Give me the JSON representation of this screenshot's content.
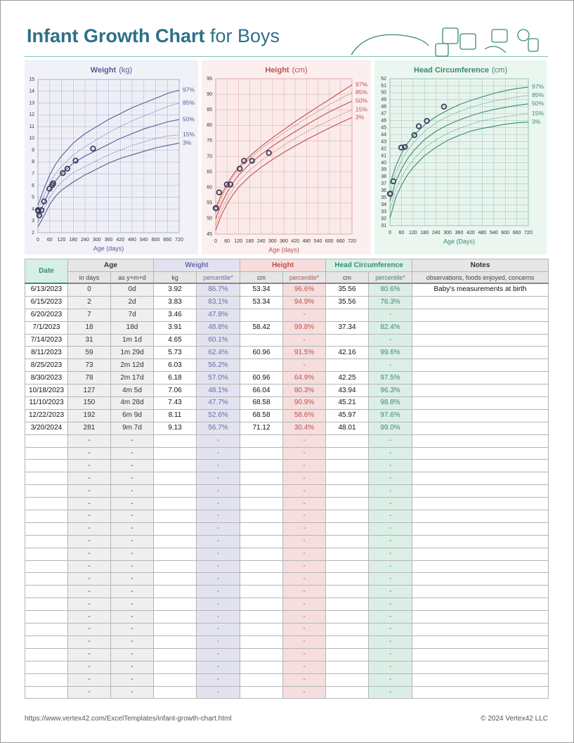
{
  "header": {
    "title_bold": "Infant Growth Chart",
    "title_rest": "for Boys"
  },
  "chart_data": [
    {
      "type": "growth",
      "title": "Weight",
      "unit": "(kg)",
      "xlabel": "Age (days)",
      "color": "#5b5b98",
      "bg": "#f1f1f8",
      "x": [
        0,
        30,
        60,
        90,
        120,
        180,
        240,
        300,
        360,
        420,
        480,
        540,
        600,
        660,
        720
      ],
      "xlim": [
        0,
        720
      ],
      "xticks": [
        0,
        60,
        120,
        180,
        240,
        300,
        360,
        420,
        480,
        540,
        600,
        660,
        720
      ],
      "ylim": [
        2,
        15
      ],
      "yticks": [
        2,
        3,
        4,
        5,
        6,
        7,
        8,
        9,
        10,
        11,
        12,
        13,
        14,
        15
      ],
      "grid": true,
      "series": [
        {
          "name": "97%",
          "style": "solid",
          "values": [
            4.3,
            5.7,
            6.9,
            7.8,
            8.5,
            9.6,
            10.4,
            11.0,
            11.6,
            12.1,
            12.6,
            13.0,
            13.4,
            13.8,
            14.1
          ]
        },
        {
          "name": "85%",
          "style": "dotted",
          "values": [
            3.9,
            5.1,
            6.2,
            7.0,
            7.6,
            8.6,
            9.3,
            9.9,
            10.5,
            11.0,
            11.5,
            11.9,
            12.3,
            12.7,
            13.0
          ]
        },
        {
          "name": "50%",
          "style": "solid",
          "values": [
            3.3,
            4.5,
            5.6,
            6.4,
            7.0,
            7.9,
            8.5,
            9.0,
            9.5,
            10.0,
            10.4,
            10.8,
            11.1,
            11.4,
            11.6
          ]
        },
        {
          "name": "15%",
          "style": "dotted",
          "values": [
            2.9,
            4.0,
            5.0,
            5.7,
            6.3,
            7.1,
            7.6,
            8.1,
            8.6,
            9.0,
            9.4,
            9.7,
            10.0,
            10.2,
            10.3
          ]
        },
        {
          "name": "3%",
          "style": "solid",
          "values": [
            2.5,
            3.4,
            4.4,
            5.1,
            5.6,
            6.3,
            6.9,
            7.4,
            7.9,
            8.3,
            8.6,
            8.9,
            9.2,
            9.4,
            9.6
          ]
        }
      ]
    },
    {
      "type": "growth",
      "title": "Height",
      "unit": "(cm)",
      "xlabel": "Age (days)",
      "color": "#c0504d",
      "bg": "#fcefef",
      "x": [
        0,
        30,
        60,
        90,
        120,
        180,
        240,
        300,
        360,
        420,
        480,
        540,
        600,
        660,
        720
      ],
      "xlim": [
        0,
        720
      ],
      "xticks": [
        0,
        60,
        120,
        180,
        240,
        300,
        360,
        420,
        480,
        540,
        600,
        660,
        720
      ],
      "ylim": [
        45,
        95
      ],
      "yticks": [
        45,
        50,
        55,
        60,
        65,
        70,
        75,
        80,
        85,
        90,
        95
      ],
      "grid": true,
      "series": [
        {
          "name": "97%",
          "style": "solid",
          "values": [
            53.4,
            57.6,
            61.1,
            64.0,
            66.4,
            70.1,
            73.2,
            76.0,
            78.6,
            81.2,
            83.6,
            86.0,
            88.3,
            90.7,
            93.0
          ]
        },
        {
          "name": "85%",
          "style": "dotted",
          "values": [
            51.8,
            56.6,
            60.3,
            63.3,
            65.7,
            69.4,
            72.4,
            75.1,
            77.6,
            80.0,
            82.3,
            84.5,
            86.7,
            88.6,
            90.5
          ]
        },
        {
          "name": "50%",
          "style": "solid",
          "values": [
            49.9,
            54.7,
            58.4,
            61.4,
            63.9,
            67.6,
            70.6,
            73.3,
            75.7,
            78.0,
            80.2,
            82.3,
            84.3,
            86.1,
            87.8
          ]
        },
        {
          "name": "15%",
          "style": "dotted",
          "values": [
            48.0,
            52.8,
            56.4,
            59.4,
            61.9,
            65.6,
            68.6,
            71.2,
            73.6,
            75.8,
            77.9,
            79.8,
            81.6,
            83.4,
            85.0
          ]
        },
        {
          "name": "3%",
          "style": "solid",
          "values": [
            46.3,
            51.1,
            54.7,
            57.6,
            60.0,
            63.6,
            66.5,
            69.0,
            71.3,
            73.4,
            75.4,
            77.3,
            79.1,
            80.9,
            82.5
          ]
        }
      ]
    },
    {
      "type": "growth",
      "title": "Head Circumference",
      "unit": "(cm)",
      "xlabel": "Age (Days)",
      "color": "#3a8a6e",
      "bg": "#ebf6f0",
      "x": [
        0,
        30,
        60,
        90,
        120,
        180,
        240,
        300,
        360,
        420,
        480,
        540,
        600,
        660,
        720
      ],
      "xlim": [
        0,
        720
      ],
      "xticks": [
        0,
        60,
        120,
        180,
        240,
        300,
        360,
        420,
        480,
        540,
        600,
        660,
        720
      ],
      "ylim": [
        31,
        52
      ],
      "yticks": [
        31,
        32,
        33,
        34,
        35,
        36,
        37,
        38,
        39,
        40,
        41,
        42,
        43,
        44,
        45,
        46,
        47,
        48,
        49,
        50,
        51,
        52
      ],
      "grid": true,
      "series": [
        {
          "name": "97%",
          "style": "solid",
          "values": [
            36.9,
            39.5,
            41.3,
            42.7,
            43.8,
            45.4,
            46.6,
            47.5,
            48.3,
            48.9,
            49.4,
            49.9,
            50.3,
            50.6,
            50.8
          ]
        },
        {
          "name": "85%",
          "style": "dotted",
          "values": [
            35.8,
            38.5,
            40.3,
            41.7,
            42.8,
            44.5,
            45.7,
            46.6,
            47.3,
            47.9,
            48.4,
            48.8,
            49.1,
            49.4,
            49.6
          ]
        },
        {
          "name": "50%",
          "style": "solid",
          "values": [
            34.5,
            37.3,
            39.1,
            40.5,
            41.6,
            43.3,
            44.5,
            45.4,
            46.1,
            46.7,
            47.2,
            47.6,
            47.9,
            48.2,
            48.4
          ]
        },
        {
          "name": "15%",
          "style": "dotted",
          "values": [
            33.3,
            36.1,
            37.9,
            39.3,
            40.4,
            42.1,
            43.3,
            44.2,
            44.9,
            45.5,
            46.0,
            46.3,
            46.6,
            46.8,
            47.0
          ]
        },
        {
          "name": "3%",
          "style": "solid",
          "values": [
            32.1,
            35.0,
            36.8,
            38.2,
            39.3,
            41.0,
            42.2,
            43.2,
            43.9,
            44.5,
            44.9,
            45.2,
            45.5,
            45.7,
            45.8
          ]
        }
      ]
    }
  ],
  "table": {
    "header": [
      "Date",
      "Age",
      "Weight",
      "Height",
      "Head Circumference",
      "Notes"
    ],
    "subheader": [
      "in days",
      "as y+m+d",
      "kg",
      "percentile*",
      "cm",
      "percentile*",
      "cm",
      "percentile*",
      "observations, foods enjoyed, concerns"
    ],
    "rows": [
      [
        "6/13/2023",
        0,
        "0d",
        3.92,
        "86.7%",
        53.34,
        "96.6%",
        35.56,
        "80.6%",
        "Baby's measurements at birth"
      ],
      [
        "6/15/2023",
        2,
        "2d",
        3.83,
        "83.1%",
        53.34,
        "94.9%",
        35.56,
        "76.3%",
        null
      ],
      [
        "6/20/2023",
        7,
        "7d",
        3.46,
        "47.8%",
        null,
        "-",
        null,
        "-",
        null
      ],
      [
        "7/1/2023",
        18,
        "18d",
        3.91,
        "48.8%",
        58.42,
        "99.8%",
        37.34,
        "82.4%",
        null
      ],
      [
        "7/14/2023",
        31,
        "1m 1d",
        4.65,
        "60.1%",
        null,
        "-",
        null,
        "-",
        null
      ],
      [
        "8/11/2023",
        59,
        "1m 29d",
        5.73,
        "62.4%",
        60.96,
        "91.5%",
        42.16,
        "99.6%",
        null
      ],
      [
        "8/25/2023",
        73,
        "2m 12d",
        6.03,
        "56.2%",
        null,
        "-",
        null,
        "-",
        null
      ],
      [
        "8/30/2023",
        78,
        "2m 17d",
        6.18,
        "57.0%",
        60.96,
        "64.9%",
        42.25,
        "97.5%",
        null
      ],
      [
        "10/18/2023",
        127,
        "4m 5d",
        7.06,
        "48.1%",
        66.04,
        "80.3%",
        43.94,
        "96.3%",
        null
      ],
      [
        "11/10/2023",
        150,
        "4m 28d",
        7.43,
        "47.7%",
        68.58,
        "90.9%",
        45.21,
        "98.8%",
        null
      ],
      [
        "12/22/2023",
        192,
        "6m 9d",
        8.11,
        "52.6%",
        68.58,
        "58.6%",
        45.97,
        "97.6%",
        null
      ],
      [
        "3/20/2024",
        281,
        "9m 7d",
        9.13,
        "56.7%",
        71.12,
        "30.4%",
        48.01,
        "99.0%",
        null
      ],
      [
        null,
        "-",
        "-",
        null,
        "-",
        null,
        "-",
        null,
        "-",
        null
      ],
      [
        null,
        "-",
        "-",
        null,
        "-",
        null,
        "-",
        null,
        "-",
        null
      ],
      [
        null,
        "-",
        "-",
        null,
        "-",
        null,
        "-",
        null,
        "-",
        null
      ],
      [
        null,
        "-",
        "-",
        null,
        "-",
        null,
        "-",
        null,
        "-",
        null
      ],
      [
        null,
        "-",
        "-",
        null,
        "-",
        null,
        "-",
        null,
        "-",
        null
      ],
      [
        null,
        "-",
        "-",
        null,
        "-",
        null,
        "-",
        null,
        "-",
        null
      ],
      [
        null,
        "-",
        "-",
        null,
        "-",
        null,
        "-",
        null,
        "-",
        null
      ],
      [
        null,
        "-",
        "-",
        null,
        "-",
        null,
        "-",
        null,
        "-",
        null
      ],
      [
        null,
        "-",
        "-",
        null,
        "-",
        null,
        "-",
        null,
        "-",
        null
      ],
      [
        null,
        "-",
        "-",
        null,
        "-",
        null,
        "-",
        null,
        "-",
        null
      ],
      [
        null,
        "-",
        "-",
        null,
        "-",
        null,
        "-",
        null,
        "-",
        null
      ],
      [
        null,
        "-",
        "-",
        null,
        "-",
        null,
        "-",
        null,
        "-",
        null
      ],
      [
        null,
        "-",
        "-",
        null,
        "-",
        null,
        "-",
        null,
        "-",
        null
      ],
      [
        null,
        "-",
        "-",
        null,
        "-",
        null,
        "-",
        null,
        "-",
        null
      ],
      [
        null,
        "-",
        "-",
        null,
        "-",
        null,
        "-",
        null,
        "-",
        null
      ],
      [
        null,
        "-",
        "-",
        null,
        "-",
        null,
        "-",
        null,
        "-",
        null
      ],
      [
        null,
        "-",
        "-",
        null,
        "-",
        null,
        "-",
        null,
        "-",
        null
      ],
      [
        null,
        "-",
        "-",
        null,
        "-",
        null,
        "-",
        null,
        "-",
        null
      ],
      [
        null,
        "-",
        "-",
        null,
        "-",
        null,
        "-",
        null,
        "-",
        null
      ],
      [
        null,
        "-",
        "-",
        null,
        "-",
        null,
        "-",
        null,
        "-",
        null
      ],
      [
        null,
        "-",
        "-",
        null,
        "-",
        null,
        "-",
        null,
        "-",
        null
      ]
    ]
  },
  "footer": {
    "url": "https://www.vertex42.com/ExcelTemplates/infant-growth-chart.html",
    "copyright": "© 2024 Vertex42 LLC"
  }
}
